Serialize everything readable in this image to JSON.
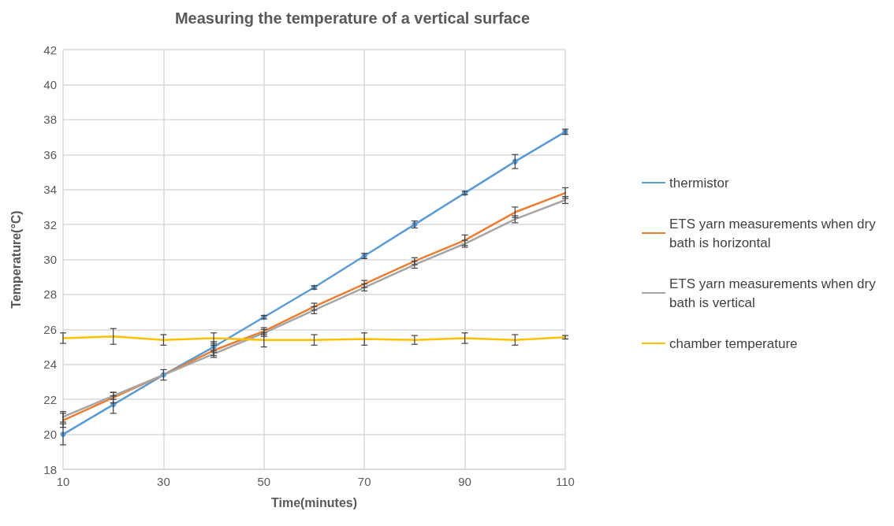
{
  "chart_data": {
    "type": "line",
    "title": "Measuring the temperature of a vertical surface",
    "xlabel": "Time(minutes)",
    "ylabel": "Temperature(°C)",
    "x": [
      10,
      20,
      30,
      40,
      50,
      60,
      70,
      80,
      90,
      100,
      110
    ],
    "series": [
      {
        "name": "thermistor",
        "color": "#5b9bd5",
        "marker": "circle",
        "values": [
          20.0,
          21.7,
          23.4,
          25.0,
          26.7,
          28.4,
          30.2,
          32.0,
          33.8,
          35.6,
          37.3
        ],
        "errors": [
          0.6,
          0.5,
          0.3,
          0.3,
          0.1,
          0.1,
          0.15,
          0.2,
          0.1,
          0.4,
          0.15
        ]
      },
      {
        "name": "ETS yarn measurements when dry bath is horizontal",
        "color": "#ed7d31",
        "values": [
          20.8,
          22.1,
          23.4,
          24.8,
          25.9,
          27.3,
          28.6,
          29.9,
          31.1,
          32.7,
          33.8
        ],
        "errors": [
          0.4,
          0.3,
          null,
          0.3,
          0.2,
          0.2,
          0.2,
          0.2,
          0.3,
          0.3,
          0.3
        ]
      },
      {
        "name": "ETS yarn measurements when dry bath is vertical",
        "color": "#a5a5a5",
        "values": [
          21.0,
          22.2,
          23.4,
          24.6,
          25.8,
          27.1,
          28.4,
          29.7,
          30.9,
          32.3,
          33.4
        ],
        "errors": [
          0.3,
          0.2,
          null,
          0.2,
          0.2,
          0.2,
          0.2,
          0.2,
          0.2,
          0.2,
          0.2
        ]
      },
      {
        "name": "chamber temperature",
        "color": "#ffc000",
        "values": [
          25.5,
          25.6,
          25.4,
          25.5,
          25.4,
          25.4,
          25.45,
          25.4,
          25.5,
          25.4,
          25.55
        ],
        "errors": [
          0.3,
          0.45,
          0.3,
          0.3,
          0.4,
          0.3,
          0.35,
          0.25,
          0.3,
          0.3,
          0.1
        ]
      }
    ],
    "xlim": [
      10,
      110
    ],
    "xticks": [
      10,
      30,
      50,
      70,
      90,
      110
    ],
    "ylim": [
      18,
      42
    ],
    "yticks": [
      18,
      20,
      22,
      24,
      26,
      28,
      30,
      32,
      34,
      36,
      38,
      40,
      42
    ],
    "grid": true,
    "legend": "right",
    "marker": "none",
    "line_style": "solid"
  }
}
